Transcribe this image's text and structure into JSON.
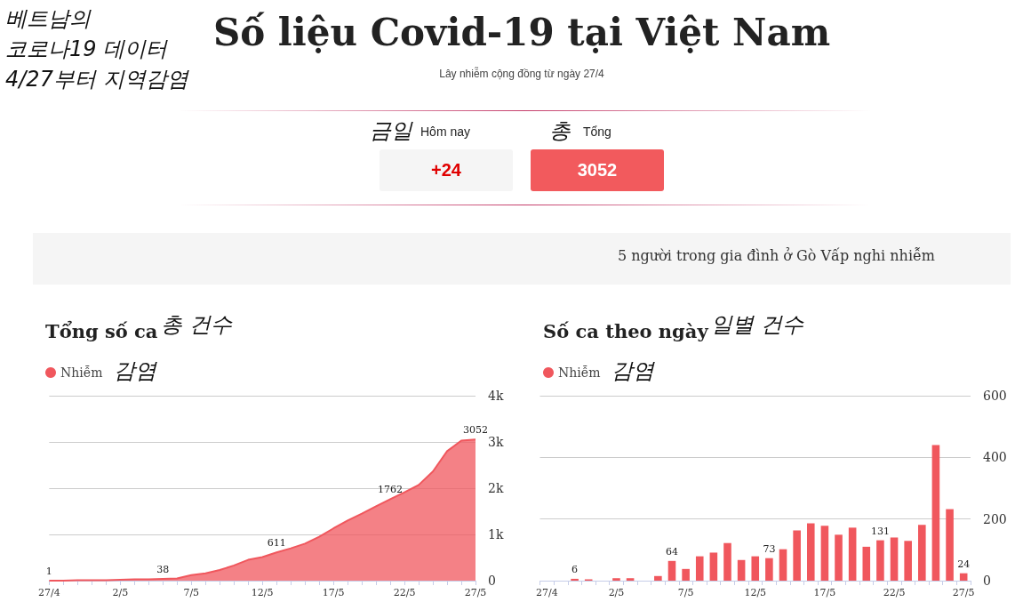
{
  "chart_data": [
    {
      "type": "other",
      "title": "Số liệu Covid-19 tại Việt Nam",
      "subtitle": "Lây nhiễm cộng đồng từ ngày 27/4",
      "annotations": [
        "베트남의\n코로나19 데이터\n4/27부터 지역감염",
        "금일",
        "Hôm nay",
        "+24",
        "총",
        "Tổng",
        "3052",
        "5 người trong gia đình ở Gò Vấp nghi nhiễm"
      ]
    },
    {
      "type": "area",
      "title": "Tổng số ca",
      "annotations": [
        "총 건수",
        "감염"
      ],
      "categories": [
        "27/4",
        null,
        null,
        null,
        null,
        "2/5",
        null,
        null,
        null,
        null,
        "7/5",
        null,
        null,
        null,
        null,
        "12/5",
        null,
        null,
        null,
        null,
        "17/5",
        null,
        null,
        null,
        null,
        "22/5",
        null,
        null,
        null,
        null,
        "27/5"
      ],
      "series": [
        {
          "name": "Nhiễm",
          "color": "#f0575d",
          "values": [
            1,
            1,
            10,
            10,
            10,
            20,
            30,
            30,
            38,
            50,
            120,
            160,
            230,
            330,
            450,
            510,
            611,
            700,
            800,
            950,
            1130,
            1300,
            1450,
            1610,
            1762,
            1910,
            2070,
            2360,
            2800,
            3030,
            3052
          ],
          "value_labels": [
            "1",
            null,
            null,
            null,
            null,
            null,
            null,
            null,
            "38",
            null,
            null,
            null,
            null,
            null,
            null,
            null,
            "611",
            null,
            null,
            null,
            null,
            null,
            null,
            null,
            "1762",
            null,
            null,
            null,
            null,
            null,
            "3052"
          ]
        }
      ],
      "ylim": [
        0,
        4000
      ],
      "yticks": [
        0,
        {
          "value": 1000,
          "label": "1k"
        },
        {
          "value": 2000,
          "label": "2k"
        },
        {
          "value": 3000,
          "label": "3k"
        },
        {
          "value": 4000,
          "label": "4k"
        }
      ],
      "grid": "y",
      "legend": "top left"
    },
    {
      "type": "bar",
      "title": "Số ca theo ngày",
      "annotations": [
        "일별 건수",
        "감염"
      ],
      "categories": [
        "27/4",
        null,
        null,
        null,
        null,
        "2/5",
        null,
        null,
        null,
        null,
        "7/5",
        null,
        null,
        null,
        null,
        "12/5",
        null,
        null,
        null,
        null,
        "17/5",
        null,
        null,
        null,
        null,
        "22/5",
        null,
        null,
        null,
        null,
        "27/5"
      ],
      "series": [
        {
          "name": "Nhiễm",
          "color": "#f0575d",
          "values": [
            0,
            0,
            6,
            4,
            0,
            8,
            8,
            0,
            15,
            64,
            38,
            79,
            91,
            122,
            67,
            79,
            73,
            102,
            163,
            186,
            178,
            149,
            172,
            110,
            131,
            140,
            129,
            181,
            440,
            232,
            24
          ],
          "value_labels": [
            null,
            null,
            "6",
            null,
            null,
            null,
            null,
            null,
            null,
            "64",
            null,
            null,
            null,
            null,
            null,
            null,
            "73",
            null,
            null,
            null,
            null,
            null,
            null,
            null,
            "131",
            null,
            null,
            null,
            null,
            null,
            "24"
          ]
        }
      ],
      "ylim": [
        0,
        600
      ],
      "yticks": [
        0,
        200,
        400,
        600
      ],
      "grid": "y",
      "legend": "top left"
    }
  ]
}
